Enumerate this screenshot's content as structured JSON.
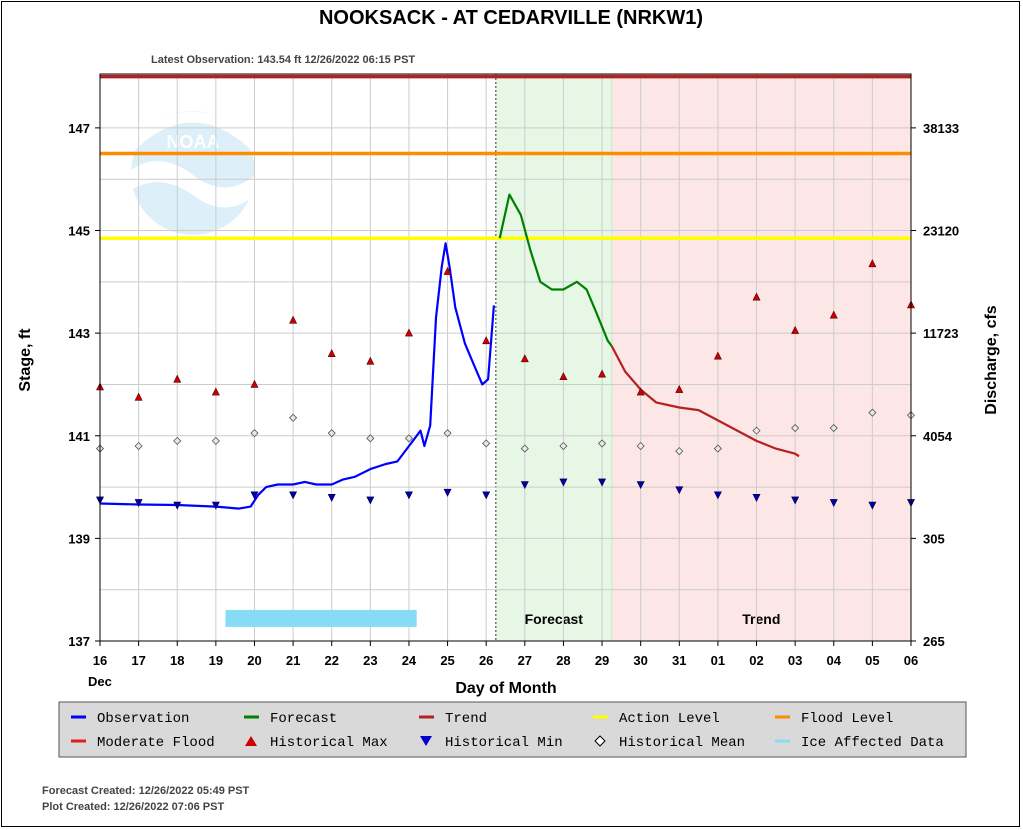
{
  "chart_data": {
    "type": "line",
    "title": "NOOKSACK - AT CEDARVILLE  (NRKW1)",
    "subtitle": "Latest Observation: 143.54 ft 12/26/2022 06:15 PST",
    "xlabel": "Day of Month",
    "ylabel": "Stage, ft",
    "y2label": "Discharge, cfs",
    "x_range": [
      16,
      37
    ],
    "ylim": [
      137,
      148.05
    ],
    "x_tick_labels": [
      "16",
      "17",
      "18",
      "19",
      "20",
      "21",
      "22",
      "23",
      "24",
      "25",
      "26",
      "27",
      "28",
      "29",
      "30",
      "31",
      "01",
      "02",
      "03",
      "04",
      "05",
      "06"
    ],
    "x_month_label": "Dec",
    "y_ticks": [
      137,
      139,
      141,
      143,
      145,
      147
    ],
    "y2_ticks": [
      {
        "stage": 147,
        "label": "38133"
      },
      {
        "stage": 145,
        "label": "23120"
      },
      {
        "stage": 143,
        "label": "11723"
      },
      {
        "stage": 141,
        "label": "4054"
      },
      {
        "stage": 139,
        "label": "305"
      },
      {
        "stage": 137,
        "label": "265"
      }
    ],
    "grid": true,
    "legend_position": "bottom",
    "thresholds": [
      {
        "name": "Moderate Flood",
        "value": 148.0,
        "color": "#b22222"
      },
      {
        "name": "Flood Level",
        "value": 146.5,
        "color": "#ff8c00"
      },
      {
        "name": "Action Level",
        "value": 144.85,
        "color": "#ffff00"
      }
    ],
    "regions": [
      {
        "label": "Forecast",
        "start": 26.25,
        "end": 29.25,
        "color": "#e6f7e6"
      },
      {
        "label": "Trend",
        "start": 29.25,
        "end": 37,
        "color": "#fde6e6"
      }
    ],
    "ice_affected": {
      "start": 19.25,
      "end": 24.2,
      "value": 137.45,
      "color": "#87dcf5"
    },
    "series": [
      {
        "name": "Observation",
        "color": "#0000ff",
        "points": [
          [
            16,
            139.68
          ],
          [
            17,
            139.66
          ],
          [
            18,
            139.65
          ],
          [
            19,
            139.62
          ],
          [
            19.6,
            139.58
          ],
          [
            19.9,
            139.62
          ],
          [
            20.1,
            139.85
          ],
          [
            20.3,
            140.0
          ],
          [
            20.6,
            140.05
          ],
          [
            21,
            140.05
          ],
          [
            21.3,
            140.1
          ],
          [
            21.6,
            140.05
          ],
          [
            22,
            140.05
          ],
          [
            22.3,
            140.15
          ],
          [
            22.6,
            140.2
          ],
          [
            23,
            140.35
          ],
          [
            23.4,
            140.45
          ],
          [
            23.7,
            140.5
          ],
          [
            24,
            140.8
          ],
          [
            24.2,
            141.0
          ],
          [
            24.3,
            141.1
          ],
          [
            24.4,
            140.8
          ],
          [
            24.55,
            141.2
          ],
          [
            24.7,
            143.3
          ],
          [
            24.85,
            144.3
          ],
          [
            24.95,
            144.75
          ],
          [
            25.05,
            144.3
          ],
          [
            25.2,
            143.5
          ],
          [
            25.45,
            142.8
          ],
          [
            25.7,
            142.35
          ],
          [
            25.9,
            142.0
          ],
          [
            26.05,
            142.1
          ],
          [
            26.2,
            143.54
          ]
        ]
      },
      {
        "name": "Forecast",
        "color": "#008000",
        "points": [
          [
            26.35,
            144.85
          ],
          [
            26.6,
            145.7
          ],
          [
            26.9,
            145.3
          ],
          [
            27.15,
            144.6
          ],
          [
            27.4,
            144.0
          ],
          [
            27.7,
            143.85
          ],
          [
            28,
            143.85
          ],
          [
            28.35,
            144.0
          ],
          [
            28.6,
            143.85
          ],
          [
            28.85,
            143.4
          ],
          [
            29.15,
            142.85
          ],
          [
            29.25,
            142.75
          ]
        ]
      },
      {
        "name": "Trend",
        "color": "#b22222",
        "points": [
          [
            29.25,
            142.75
          ],
          [
            29.6,
            142.25
          ],
          [
            30,
            141.9
          ],
          [
            30.4,
            141.65
          ],
          [
            31,
            141.55
          ],
          [
            31.5,
            141.5
          ],
          [
            32,
            141.3
          ],
          [
            32.5,
            141.1
          ],
          [
            33,
            140.9
          ],
          [
            33.5,
            140.75
          ],
          [
            34,
            140.65
          ],
          [
            34.1,
            140.6
          ]
        ]
      }
    ],
    "historical_max": [
      [
        16,
        141.95
      ],
      [
        17,
        141.75
      ],
      [
        18,
        142.1
      ],
      [
        19,
        141.85
      ],
      [
        20,
        142.0
      ],
      [
        21,
        143.25
      ],
      [
        22,
        142.6
      ],
      [
        23,
        142.45
      ],
      [
        24,
        143.0
      ],
      [
        25,
        144.2
      ],
      [
        26,
        142.85
      ],
      [
        27,
        142.5
      ],
      [
        28,
        142.15
      ],
      [
        29,
        142.2
      ],
      [
        30,
        141.85
      ],
      [
        31,
        141.9
      ],
      [
        32,
        142.55
      ],
      [
        33,
        143.7
      ],
      [
        34,
        143.05
      ],
      [
        35,
        143.35
      ],
      [
        36,
        144.35
      ],
      [
        37,
        143.55
      ]
    ],
    "historical_min": [
      [
        16,
        139.75
      ],
      [
        17,
        139.7
      ],
      [
        18,
        139.65
      ],
      [
        19,
        139.65
      ],
      [
        20,
        139.85
      ],
      [
        21,
        139.85
      ],
      [
        22,
        139.8
      ],
      [
        23,
        139.75
      ],
      [
        24,
        139.85
      ],
      [
        25,
        139.9
      ],
      [
        26,
        139.85
      ],
      [
        27,
        140.05
      ],
      [
        28,
        140.1
      ],
      [
        29,
        140.1
      ],
      [
        30,
        140.05
      ],
      [
        31,
        139.95
      ],
      [
        32,
        139.85
      ],
      [
        33,
        139.8
      ],
      [
        34,
        139.75
      ],
      [
        35,
        139.7
      ],
      [
        36,
        139.65
      ],
      [
        37,
        139.7
      ]
    ],
    "historical_mean": [
      [
        16,
        140.75
      ],
      [
        17,
        140.8
      ],
      [
        18,
        140.9
      ],
      [
        19,
        140.9
      ],
      [
        20,
        141.05
      ],
      [
        21,
        141.35
      ],
      [
        22,
        141.05
      ],
      [
        23,
        140.95
      ],
      [
        24,
        140.95
      ],
      [
        25,
        141.05
      ],
      [
        26,
        140.85
      ],
      [
        27,
        140.75
      ],
      [
        28,
        140.8
      ],
      [
        29,
        140.85
      ],
      [
        30,
        140.8
      ],
      [
        31,
        140.7
      ],
      [
        32,
        140.75
      ],
      [
        33,
        141.1
      ],
      [
        34,
        141.15
      ],
      [
        35,
        141.15
      ],
      [
        36,
        141.45
      ],
      [
        37,
        141.4
      ]
    ],
    "legend": [
      {
        "label": "Observation",
        "kind": "line",
        "color": "#0000ff"
      },
      {
        "label": "Forecast",
        "kind": "line",
        "color": "#008000"
      },
      {
        "label": "Trend",
        "kind": "line",
        "color": "#b22222"
      },
      {
        "label": "Action Level",
        "kind": "line",
        "color": "#ffff00"
      },
      {
        "label": "Flood Level",
        "kind": "line",
        "color": "#ff8c00"
      },
      {
        "label": "Moderate Flood",
        "kind": "line",
        "color": "#e02020"
      },
      {
        "label": "Historical Max",
        "kind": "up-triangle",
        "color": "#cc0000"
      },
      {
        "label": "Historical Min",
        "kind": "down-triangle",
        "color": "#0000cc"
      },
      {
        "label": "Historical Mean",
        "kind": "diamond",
        "color": "#ffffff"
      },
      {
        "label": "Ice Affected Data",
        "kind": "line",
        "color": "#87dcf5"
      }
    ]
  },
  "footer": {
    "forecast_created": "Forecast Created: 12/26/2022 05:49 PST",
    "plot_created": "Plot Created: 12/26/2022 07:06 PST"
  },
  "logo": {
    "text": "NOAA"
  }
}
